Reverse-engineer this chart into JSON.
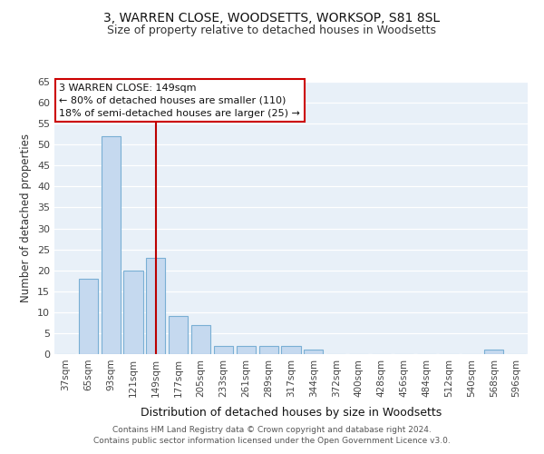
{
  "title1": "3, WARREN CLOSE, WOODSETTS, WORKSOP, S81 8SL",
  "title2": "Size of property relative to detached houses in Woodsetts",
  "xlabel": "Distribution of detached houses by size in Woodsetts",
  "ylabel": "Number of detached properties",
  "categories": [
    "37sqm",
    "65sqm",
    "93sqm",
    "121sqm",
    "149sqm",
    "177sqm",
    "205sqm",
    "233sqm",
    "261sqm",
    "289sqm",
    "317sqm",
    "344sqm",
    "372sqm",
    "400sqm",
    "428sqm",
    "456sqm",
    "484sqm",
    "512sqm",
    "540sqm",
    "568sqm",
    "596sqm"
  ],
  "values": [
    0,
    18,
    52,
    20,
    23,
    9,
    7,
    2,
    2,
    2,
    2,
    1,
    0,
    0,
    0,
    0,
    0,
    0,
    0,
    1,
    0
  ],
  "bar_color": "#c5d9ef",
  "bar_edge_color": "#7aafd4",
  "highlight_index": 4,
  "red_line_color": "#bb0000",
  "annotation_line1": "3 WARREN CLOSE: 149sqm",
  "annotation_line2": "← 80% of detached houses are smaller (110)",
  "annotation_line3": "18% of semi-detached houses are larger (25) →",
  "annotation_box_color": "#ffffff",
  "annotation_box_edge": "#cc0000",
  "ylim": [
    0,
    65
  ],
  "yticks": [
    0,
    5,
    10,
    15,
    20,
    25,
    30,
    35,
    40,
    45,
    50,
    55,
    60,
    65
  ],
  "bg_color": "#e8f0f8",
  "grid_color": "#ffffff",
  "footer1": "Contains HM Land Registry data © Crown copyright and database right 2024.",
  "footer2": "Contains public sector information licensed under the Open Government Licence v3.0."
}
